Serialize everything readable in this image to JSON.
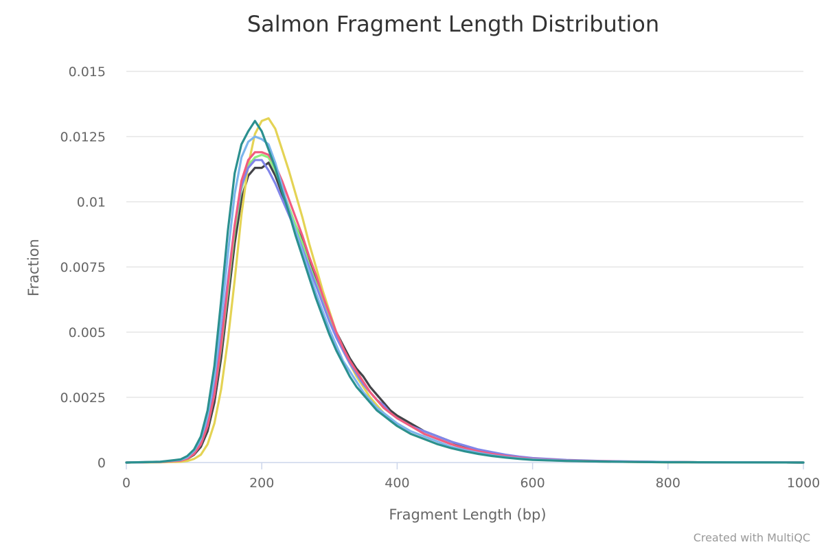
{
  "chart_data": {
    "type": "line",
    "title": "Salmon Fragment Length Distribution",
    "xlabel": "Fragment Length (bp)",
    "ylabel": "Fraction",
    "xlim": [
      0,
      1000
    ],
    "ylim": [
      0,
      0.015
    ],
    "x_ticks": [
      0,
      200,
      400,
      600,
      800,
      1000
    ],
    "x_tick_labels": [
      "0",
      "200",
      "400",
      "600",
      "800",
      "1000"
    ],
    "y_ticks": [
      0,
      0.0025,
      0.005,
      0.0075,
      0.01,
      0.0125,
      0.015
    ],
    "y_tick_labels": [
      "0",
      "0.0025",
      "0.005",
      "0.0075",
      "0.01",
      "0.0125",
      "0.015"
    ],
    "grid": true,
    "legend": "none",
    "credit": "Created with MultiQC",
    "x": [
      0,
      50,
      80,
      90,
      100,
      110,
      120,
      130,
      140,
      150,
      160,
      170,
      180,
      190,
      200,
      210,
      220,
      230,
      240,
      250,
      260,
      270,
      280,
      290,
      300,
      310,
      320,
      330,
      340,
      350,
      360,
      370,
      380,
      390,
      400,
      420,
      440,
      460,
      480,
      500,
      520,
      540,
      560,
      580,
      600,
      650,
      700,
      750,
      800,
      850,
      900,
      950,
      1000
    ],
    "series": [
      {
        "color": "#434348",
        "values": [
          0,
          2e-05,
          7e-05,
          0.00014,
          0.0003,
          0.0006,
          0.0012,
          0.0023,
          0.004,
          0.0062,
          0.0084,
          0.0101,
          0.011,
          0.0113,
          0.0113,
          0.0115,
          0.011,
          0.0103,
          0.0097,
          0.0091,
          0.0085,
          0.0077,
          0.0071,
          0.0064,
          0.0057,
          0.005,
          0.0045,
          0.004,
          0.0036,
          0.0033,
          0.0029,
          0.0026,
          0.0023,
          0.002,
          0.0018,
          0.0015,
          0.0012,
          0.001,
          0.0008,
          0.0006,
          0.00045,
          0.00035,
          0.00027,
          0.0002,
          0.00015,
          8e-05,
          5e-05,
          3e-05,
          2e-05,
          1e-05,
          1e-05,
          5e-06,
          0
        ]
      },
      {
        "color": "#e4d354",
        "values": [
          0,
          1e-05,
          3e-05,
          6e-05,
          0.00014,
          0.0003,
          0.0007,
          0.0015,
          0.0028,
          0.0047,
          0.007,
          0.0095,
          0.0114,
          0.0126,
          0.0131,
          0.0132,
          0.0128,
          0.012,
          0.0112,
          0.0103,
          0.0094,
          0.0084,
          0.0075,
          0.0066,
          0.0058,
          0.005,
          0.0044,
          0.0038,
          0.0033,
          0.0029,
          0.0025,
          0.0022,
          0.0019,
          0.0016,
          0.0014,
          0.0011,
          0.0009,
          0.0007,
          0.00055,
          0.00045,
          0.00035,
          0.00027,
          0.0002,
          0.00015,
          0.00011,
          6e-05,
          4e-05,
          2e-05,
          1e-05,
          1e-05,
          5e-06,
          3e-06,
          0
        ]
      },
      {
        "color": "#90ed7d",
        "values": [
          0,
          2e-05,
          8e-05,
          0.00016,
          0.00035,
          0.0007,
          0.0014,
          0.0026,
          0.0044,
          0.0066,
          0.0089,
          0.0105,
          0.0114,
          0.0117,
          0.0118,
          0.0117,
          0.0112,
          0.0105,
          0.0098,
          0.0091,
          0.0084,
          0.0076,
          0.0069,
          0.0062,
          0.0055,
          0.0049,
          0.0043,
          0.0038,
          0.0034,
          0.003,
          0.0027,
          0.0024,
          0.0021,
          0.0019,
          0.0017,
          0.0014,
          0.0011,
          0.0009,
          0.0007,
          0.00055,
          0.00042,
          0.00032,
          0.00025,
          0.00019,
          0.00014,
          8e-05,
          5e-05,
          3e-05,
          2e-05,
          1e-05,
          1e-05,
          5e-06,
          0
        ]
      },
      {
        "color": "#8085e9",
        "values": [
          0,
          2e-05,
          8e-05,
          0.00017,
          0.00038,
          0.0008,
          0.0016,
          0.0029,
          0.0048,
          0.007,
          0.0091,
          0.0106,
          0.0113,
          0.0116,
          0.0116,
          0.0112,
          0.0107,
          0.0101,
          0.0095,
          0.0089,
          0.0082,
          0.0075,
          0.0068,
          0.0061,
          0.0054,
          0.0048,
          0.0043,
          0.0038,
          0.0034,
          0.003,
          0.0027,
          0.0024,
          0.0022,
          0.0019,
          0.0017,
          0.0014,
          0.0012,
          0.001,
          0.0008,
          0.00065,
          0.0005,
          0.0004,
          0.0003,
          0.00023,
          0.00017,
          0.0001,
          6e-05,
          4e-05,
          2e-05,
          1e-05,
          1e-05,
          5e-06,
          0
        ]
      },
      {
        "color": "#f15c80",
        "values": [
          0,
          2e-05,
          7e-05,
          0.00015,
          0.00033,
          0.0007,
          0.0014,
          0.0026,
          0.0045,
          0.0068,
          0.0091,
          0.0108,
          0.0116,
          0.0119,
          0.0119,
          0.0118,
          0.0114,
          0.0108,
          0.0101,
          0.0094,
          0.0087,
          0.0079,
          0.0072,
          0.0064,
          0.0057,
          0.005,
          0.0044,
          0.0039,
          0.0035,
          0.0031,
          0.0027,
          0.0024,
          0.0021,
          0.0019,
          0.0017,
          0.0014,
          0.0011,
          0.0009,
          0.0007,
          0.00055,
          0.00043,
          0.00033,
          0.00025,
          0.00019,
          0.00014,
          8e-05,
          5e-05,
          3e-05,
          2e-05,
          1e-05,
          1e-05,
          5e-06,
          0
        ]
      },
      {
        "color": "#7cb5ec",
        "values": [
          0,
          3e-05,
          0.0001,
          0.0002,
          0.00045,
          0.0009,
          0.0018,
          0.0033,
          0.0055,
          0.008,
          0.0103,
          0.0117,
          0.0123,
          0.0125,
          0.0124,
          0.0122,
          0.0115,
          0.0106,
          0.0097,
          0.0089,
          0.0081,
          0.0073,
          0.0065,
          0.0058,
          0.0051,
          0.0045,
          0.0039,
          0.0035,
          0.0031,
          0.0027,
          0.0024,
          0.0021,
          0.0019,
          0.0017,
          0.0015,
          0.0012,
          0.001,
          0.0008,
          0.0006,
          0.00048,
          0.00037,
          0.00028,
          0.00021,
          0.00016,
          0.00012,
          7e-05,
          4e-05,
          3e-05,
          2e-05,
          1e-05,
          1e-05,
          5e-06,
          0
        ]
      },
      {
        "color": "#2b908f",
        "values": [
          0,
          3e-05,
          0.00012,
          0.00025,
          0.0005,
          0.001,
          0.002,
          0.0037,
          0.0062,
          0.0089,
          0.0111,
          0.0122,
          0.0127,
          0.0131,
          0.0127,
          0.012,
          0.0113,
          0.0104,
          0.0096,
          0.0087,
          0.0079,
          0.0071,
          0.0063,
          0.0056,
          0.0049,
          0.0043,
          0.0038,
          0.0033,
          0.0029,
          0.0026,
          0.0023,
          0.002,
          0.0018,
          0.0016,
          0.0014,
          0.0011,
          0.0009,
          0.0007,
          0.00055,
          0.00043,
          0.00033,
          0.00025,
          0.00019,
          0.00014,
          0.0001,
          6e-05,
          4e-05,
          2e-05,
          1e-05,
          1e-05,
          5e-06,
          3e-06,
          0
        ]
      }
    ]
  }
}
